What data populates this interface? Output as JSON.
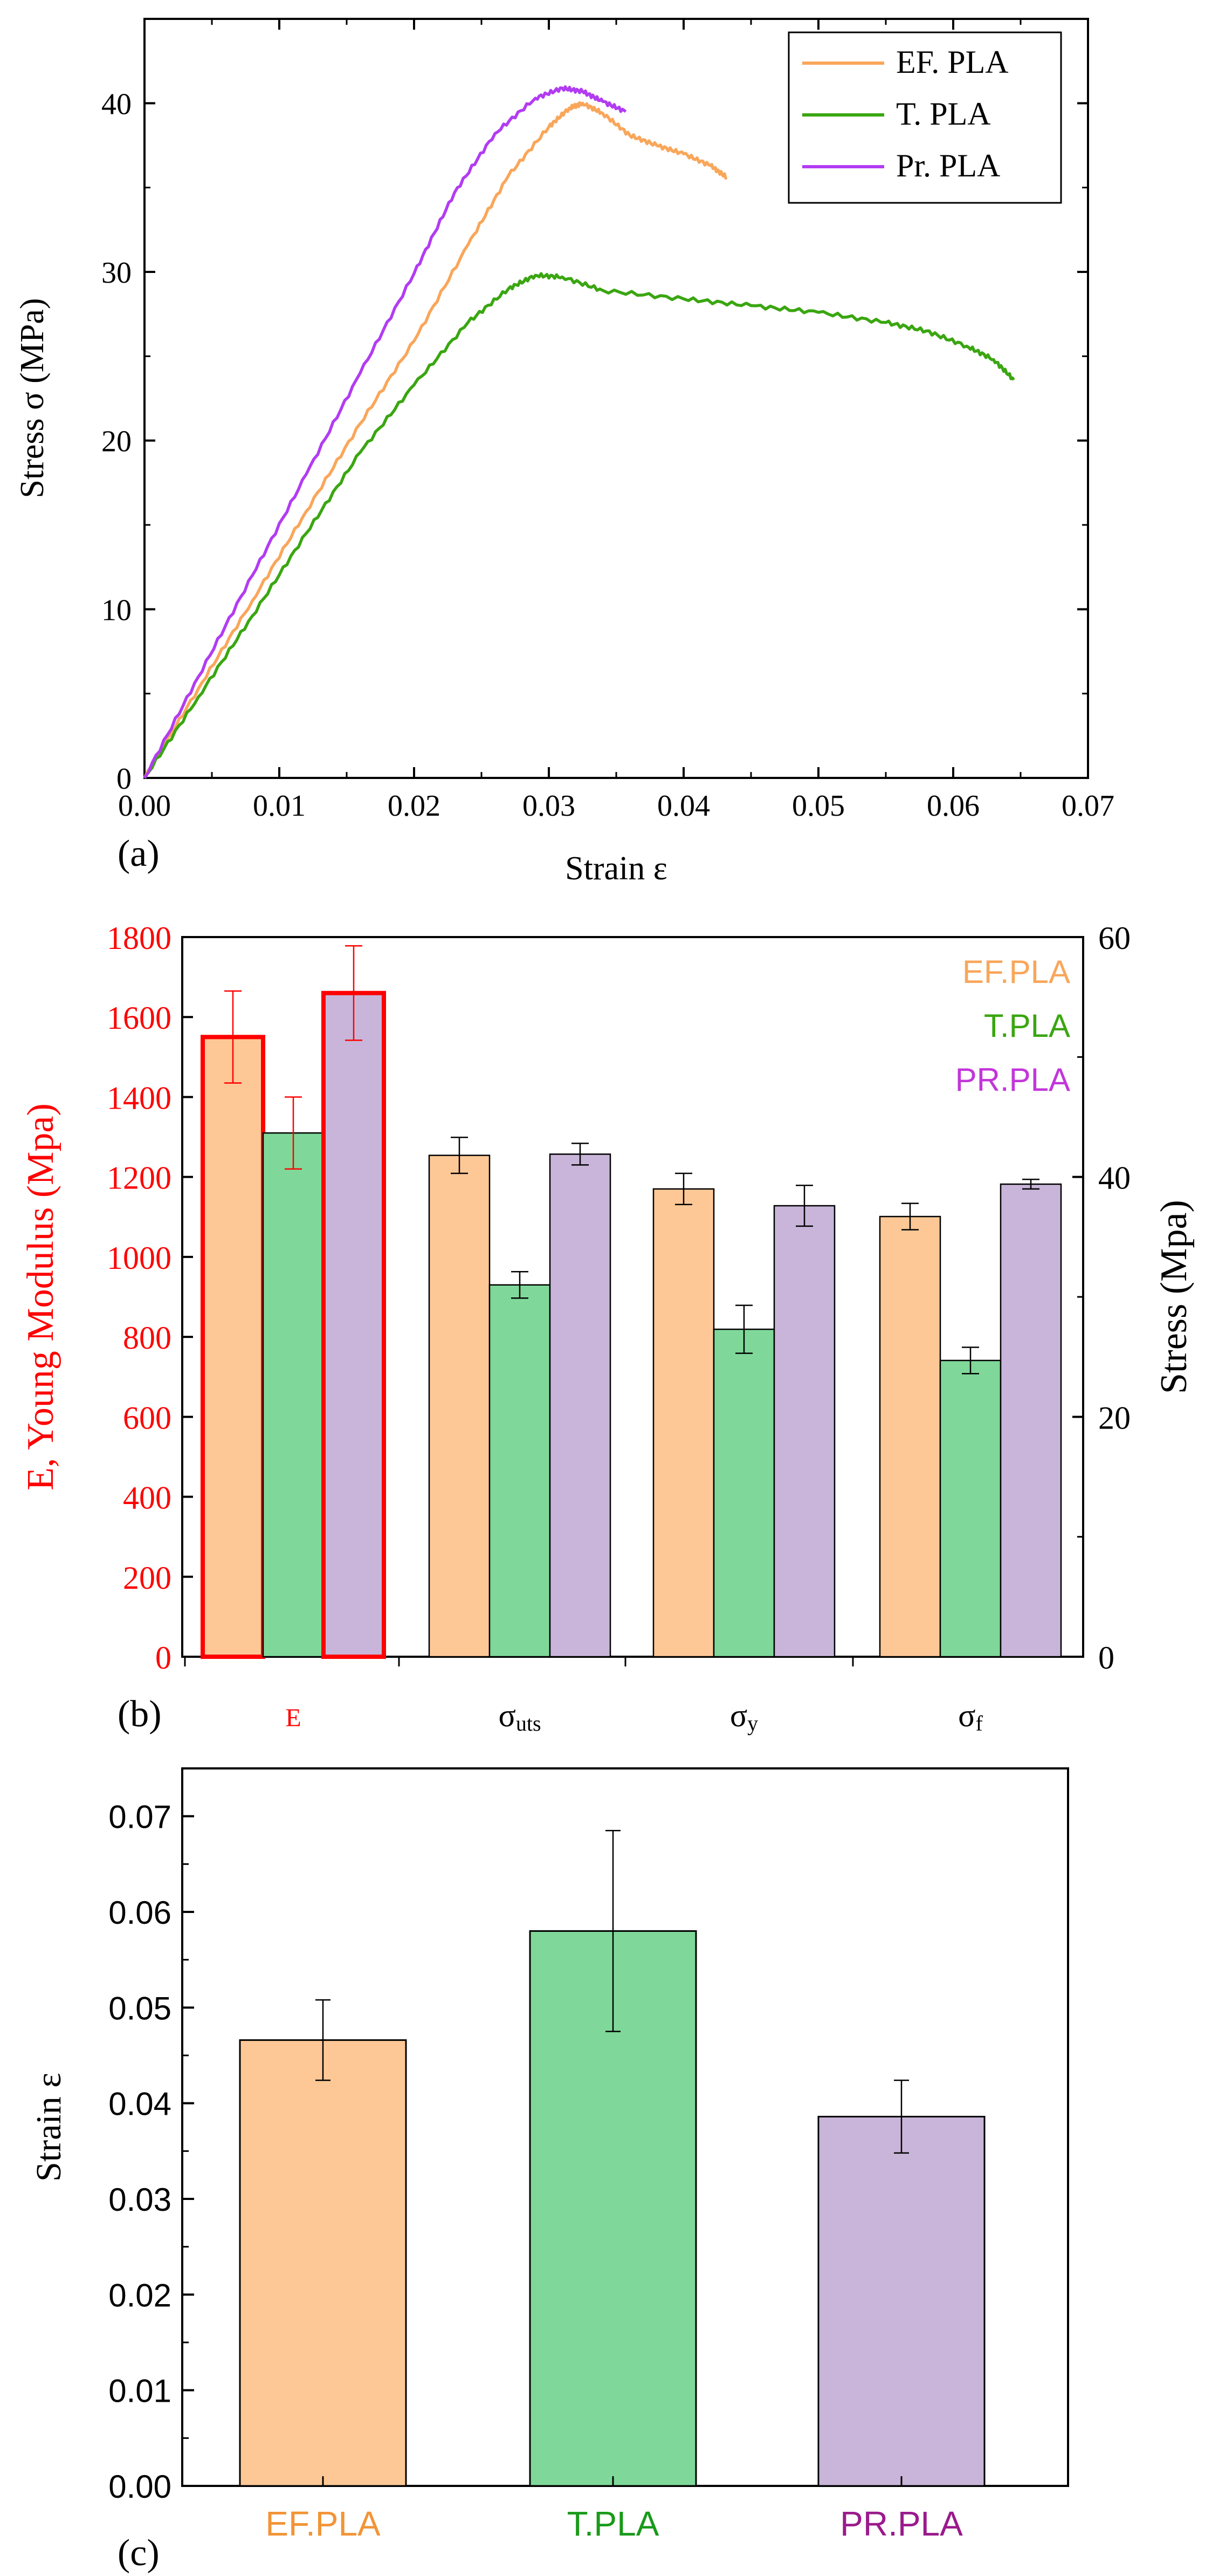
{
  "colors": {
    "ef": "#f9a65a",
    "t": "#3aa611",
    "pr": "#b23cf2",
    "ef_bar": "#fdc896",
    "t_bar": "#7fd899",
    "pr_bar": "#c8b5d9",
    "modulus_axis": "#ff0000",
    "c_ef_label": "#f29437",
    "c_t_label": "#199a19",
    "c_pr_label": "#9a1a8c",
    "b_pr_legend": "#c236d9"
  },
  "chart_data": [
    {
      "panel": "(a)",
      "type": "line",
      "title": "",
      "xlabel": "Strain ε",
      "ylabel": "Stress σ (MPa)",
      "xlim": [
        0,
        0.07
      ],
      "ylim": [
        0,
        45
      ],
      "xticks": [
        "0.00",
        "0.01",
        "0.02",
        "0.03",
        "0.04",
        "0.05",
        "0.06",
        "0.07"
      ],
      "yticks": [
        "0",
        "10",
        "20",
        "30",
        "40"
      ],
      "grid": false,
      "legend_position": "top-right",
      "series": [
        {
          "name": "EF. PLA",
          "color_key": "ef",
          "points": [
            [
              0,
              0
            ],
            [
              0.004,
              5.3
            ],
            [
              0.008,
              10.5
            ],
            [
              0.012,
              15.8
            ],
            [
              0.016,
              21
            ],
            [
              0.02,
              25.9
            ],
            [
              0.024,
              31.6
            ],
            [
              0.027,
              35.7
            ],
            [
              0.03,
              38.6
            ],
            [
              0.0315,
              39.7
            ],
            [
              0.0325,
              40.0
            ],
            [
              0.034,
              39.4
            ],
            [
              0.036,
              38.1
            ],
            [
              0.038,
              37.5
            ],
            [
              0.04,
              37.0
            ],
            [
              0.042,
              36.3
            ],
            [
              0.0432,
              35.6
            ]
          ]
        },
        {
          "name": "T. PLA",
          "color_key": "t",
          "points": [
            [
              0,
              0
            ],
            [
              0.004,
              4.8
            ],
            [
              0.008,
              9.6
            ],
            [
              0.012,
              14.5
            ],
            [
              0.016,
              19.3
            ],
            [
              0.02,
              23.3
            ],
            [
              0.024,
              27.0
            ],
            [
              0.027,
              29.0
            ],
            [
              0.029,
              29.8
            ],
            [
              0.031,
              29.7
            ],
            [
              0.034,
              28.9
            ],
            [
              0.04,
              28.4
            ],
            [
              0.045,
              28.0
            ],
            [
              0.05,
              27.6
            ],
            [
              0.055,
              27.0
            ],
            [
              0.058,
              26.5
            ],
            [
              0.061,
              25.6
            ],
            [
              0.063,
              24.8
            ],
            [
              0.0645,
              23.6
            ]
          ]
        },
        {
          "name": "Pr. PLA",
          "color_key": "pr",
          "points": [
            [
              0,
              0
            ],
            [
              0.004,
              6.0
            ],
            [
              0.008,
              12.0
            ],
            [
              0.012,
              18.0
            ],
            [
              0.016,
              24.0
            ],
            [
              0.02,
              29.9
            ],
            [
              0.023,
              34.7
            ],
            [
              0.026,
              38.2
            ],
            [
              0.029,
              40.3
            ],
            [
              0.031,
              40.9
            ],
            [
              0.0325,
              40.7
            ],
            [
              0.034,
              40.1
            ],
            [
              0.0357,
              39.5
            ]
          ]
        }
      ]
    },
    {
      "panel": "(b)",
      "type": "bar",
      "title": "",
      "xlabel": "",
      "ylabel_left": "E, Young Modulus (Mpa)",
      "ylabel_right": "Stress (Mpa)",
      "ylim_left": [
        0,
        1800
      ],
      "ylim_right": [
        0,
        60
      ],
      "yticks_left": [
        "0",
        "200",
        "400",
        "600",
        "800",
        "1000",
        "1200",
        "1400",
        "1600",
        "1800"
      ],
      "yticks_right": [
        "0",
        "20",
        "40",
        "60"
      ],
      "grid": false,
      "legend_position": "top-right",
      "categories": [
        "E",
        "σuts",
        "σy",
        "σf"
      ],
      "category_axis": [
        "left",
        "right",
        "right",
        "right"
      ],
      "series": [
        {
          "name": "EF.PLA",
          "color_key": "ef_bar",
          "legend_color_key": "ef",
          "values": [
            1550,
            41.8,
            39.0,
            36.7
          ],
          "errors": [
            115,
            1.5,
            1.3,
            1.1
          ]
        },
        {
          "name": "T.PLA",
          "color_key": "t_bar",
          "legend_color_key": "t",
          "values": [
            1310,
            31.0,
            27.3,
            24.7
          ],
          "errors": [
            90,
            1.1,
            2.0,
            1.1
          ]
        },
        {
          "name": "PR.PLA",
          "color_key": "pr_bar",
          "legend_color_key": "b_pr_legend",
          "values": [
            1660,
            41.9,
            37.6,
            39.4
          ],
          "errors": [
            118,
            0.9,
            1.7,
            0.4
          ]
        }
      ]
    },
    {
      "panel": "(c)",
      "type": "bar",
      "title": "",
      "xlabel": "",
      "ylabel": "Strain ε",
      "ylim": [
        0,
        0.075
      ],
      "yticks": [
        "0.00",
        "0.01",
        "0.02",
        "0.03",
        "0.04",
        "0.05",
        "0.06",
        "0.07"
      ],
      "grid": false,
      "categories": [
        "EF.PLA",
        "T.PLA",
        "PR.PLA"
      ],
      "category_label_color_keys": [
        "c_ef_label",
        "c_t_label",
        "c_pr_label"
      ],
      "bar_color_keys": [
        "ef_bar",
        "t_bar",
        "pr_bar"
      ],
      "values": [
        0.0466,
        0.058,
        0.0386
      ],
      "errors": [
        0.0042,
        0.0105,
        0.0038
      ]
    }
  ]
}
